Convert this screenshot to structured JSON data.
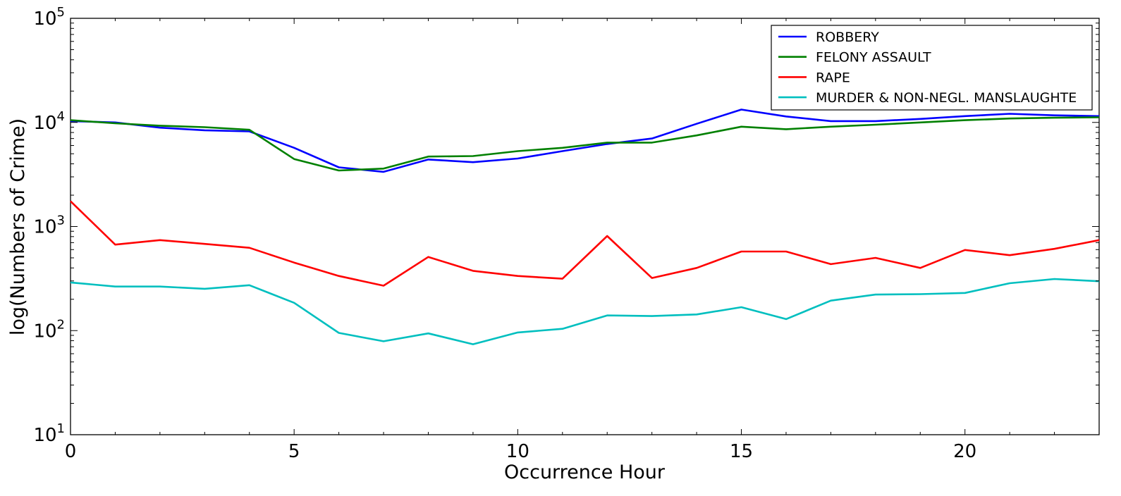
{
  "chart_data": {
    "type": "line",
    "title": "",
    "xlabel": "Occurrence Hour",
    "ylabel": "log(Numbers of Crime)",
    "y_scale": "log",
    "xlim": [
      0,
      23
    ],
    "ylim": [
      10,
      100000
    ],
    "x_ticks": [
      0,
      5,
      10,
      15,
      20
    ],
    "y_ticks": [
      {
        "base": "10",
        "exp": "1",
        "value": 10
      },
      {
        "base": "10",
        "exp": "2",
        "value": 100
      },
      {
        "base": "10",
        "exp": "3",
        "value": 1000
      },
      {
        "base": "10",
        "exp": "4",
        "value": 10000
      },
      {
        "base": "10",
        "exp": "5",
        "value": 100000
      }
    ],
    "grid": false,
    "legend_position": "top-right",
    "x": [
      0,
      1,
      2,
      3,
      4,
      5,
      6,
      7,
      8,
      9,
      10,
      11,
      12,
      13,
      14,
      15,
      16,
      17,
      18,
      19,
      20,
      21,
      22,
      23
    ],
    "series": [
      {
        "name": "ROBBERY",
        "color": "#0000ff",
        "values": [
          10300,
          10000,
          8900,
          8400,
          8200,
          5700,
          3700,
          3350,
          4400,
          4150,
          4500,
          5300,
          6200,
          7000,
          9700,
          13300,
          11400,
          10300,
          10300,
          10800,
          11500,
          12100,
          11700,
          11500
        ]
      },
      {
        "name": "FELONY ASSAULT",
        "color": "#008000",
        "values": [
          10500,
          9800,
          9300,
          9000,
          8500,
          4450,
          3450,
          3600,
          4700,
          4750,
          5300,
          5700,
          6400,
          6400,
          7500,
          9100,
          8600,
          9100,
          9500,
          10000,
          10500,
          10900,
          11100,
          11200
        ]
      },
      {
        "name": "RAPE",
        "color": "#ff0000",
        "values": [
          1750,
          670,
          740,
          680,
          625,
          450,
          335,
          270,
          510,
          375,
          335,
          315,
          810,
          320,
          400,
          575,
          575,
          435,
          500,
          400,
          595,
          530,
          610,
          740
        ]
      },
      {
        "name": "MURDER & NON-NEGL. MANSLAUGHTE",
        "color": "#00bfbf",
        "values": [
          290,
          265,
          265,
          252,
          273,
          185,
          95,
          79,
          94,
          74,
          96,
          104,
          140,
          138,
          143,
          168,
          129,
          194,
          222,
          224,
          230,
          285,
          313,
          298
        ]
      }
    ]
  }
}
